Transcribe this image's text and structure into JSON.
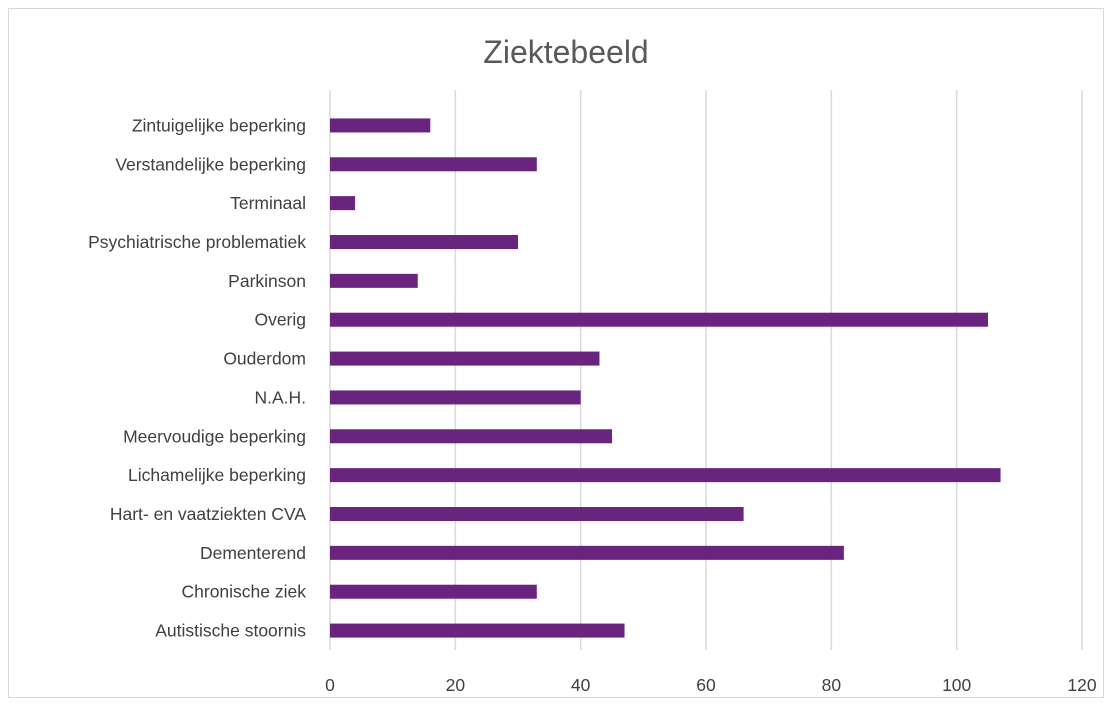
{
  "chart_data": {
    "type": "bar",
    "orientation": "horizontal",
    "title": "Ziektebeeld",
    "xlabel": "",
    "ylabel": "",
    "categories": [
      "Zintuigelijke beperking",
      "Verstandelijke beperking",
      "Terminaal",
      "Psychiatrische problematiek",
      "Parkinson",
      "Overig",
      "Ouderdom",
      "N.A.H.",
      "Meervoudige beperking",
      "Lichamelijke beperking",
      "Hart- en vaatziekten CVA",
      "Dementerend",
      "Chronische ziek",
      "Autistische stoornis"
    ],
    "values": [
      16,
      33,
      4,
      30,
      14,
      105,
      43,
      40,
      45,
      107,
      66,
      82,
      33,
      47
    ],
    "xlim": [
      0,
      120
    ],
    "xticks": [
      0,
      20,
      40,
      60,
      80,
      100,
      120
    ],
    "grid": "vertical",
    "legend": "none",
    "bar_color": "#68247f"
  }
}
